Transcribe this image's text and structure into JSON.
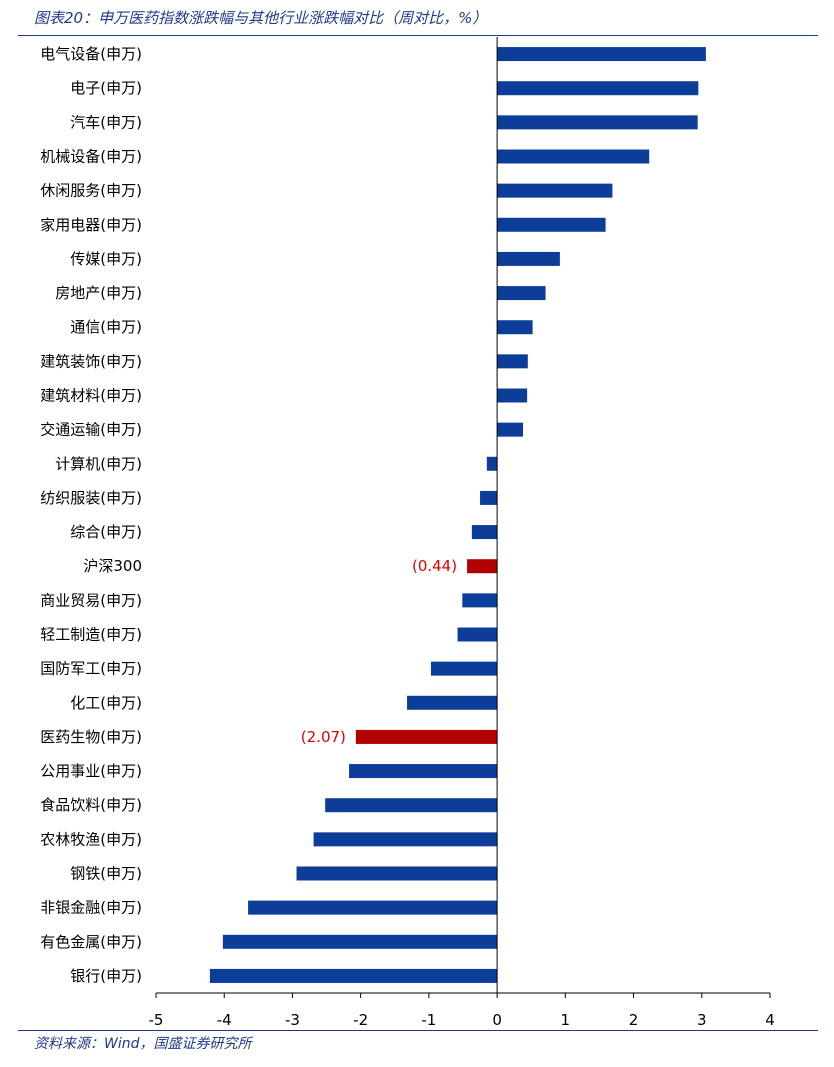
{
  "title": "图表20：申万医药指数涨跌幅与其他行业涨跌幅对比（周对比，%）",
  "source": "资料来源：Wind，国盛证券研究所",
  "colors": {
    "bar": "#0b3d99",
    "highlight": "#b30000",
    "label": "#e00000",
    "rule": "#1f3a8a"
  },
  "chart_data": {
    "type": "bar",
    "orientation": "horizontal",
    "categories": [
      "电气设备(申万)",
      "电子(申万)",
      "汽车(申万)",
      "机械设备(申万)",
      "休闲服务(申万)",
      "家用电器(申万)",
      "传媒(申万)",
      "房地产(申万)",
      "通信(申万)",
      "建筑装饰(申万)",
      "建筑材料(申万)",
      "交通运输(申万)",
      "计算机(申万)",
      "纺织服装(申万)",
      "综合(申万)",
      "沪深300",
      "商业贸易(申万)",
      "轻工制造(申万)",
      "国防军工(申万)",
      "化工(申万)",
      "医药生物(申万)",
      "公用事业(申万)",
      "食品饮料(申万)",
      "农林牧渔(申万)",
      "钢铁(申万)",
      "非银金融(申万)",
      "有色金属(申万)",
      "银行(申万)"
    ],
    "values": [
      3.06,
      2.95,
      2.94,
      2.23,
      1.69,
      1.59,
      0.92,
      0.71,
      0.52,
      0.45,
      0.44,
      0.38,
      -0.15,
      -0.25,
      -0.37,
      -0.44,
      -0.51,
      -0.58,
      -0.97,
      -1.32,
      -2.07,
      -2.17,
      -2.52,
      -2.69,
      -2.94,
      -3.65,
      -4.02,
      -4.21
    ],
    "highlighted": [
      "沪深300",
      "医药生物(申万)"
    ],
    "data_labels": {
      "沪深300": "(0.44)",
      "医药生物(申万)": "(2.07)"
    },
    "xlim": [
      -5,
      4
    ],
    "xticks": [
      "-5",
      "-4",
      "-3",
      "-2",
      "-1",
      "0",
      "1",
      "2",
      "3",
      "4"
    ],
    "xlabel": "",
    "ylabel": "",
    "grid": false
  }
}
